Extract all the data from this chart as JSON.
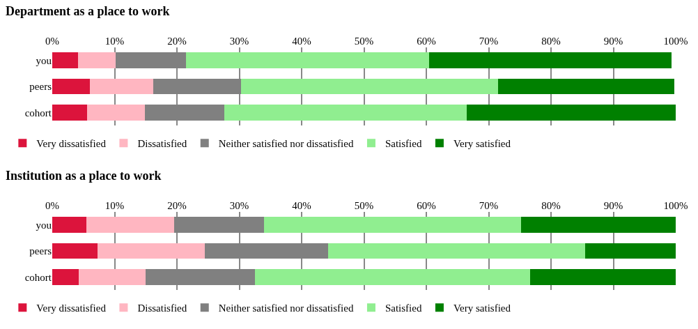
{
  "chart_data": [
    {
      "type": "bar",
      "title": "Department as a place to work",
      "orientation": "horizontal",
      "stacked": true,
      "categories": [
        "you",
        "peers",
        "cohort"
      ],
      "series": [
        {
          "name": "Very dissatisfied",
          "color": "#dc143c",
          "values": [
            4.1,
            6.0,
            5.6
          ]
        },
        {
          "name": "Dissatisfied",
          "color": "#ffb6c1",
          "values": [
            6.1,
            10.2,
            9.3
          ]
        },
        {
          "name": "Neither satisfied nor dissatisfied",
          "color": "#808080",
          "values": [
            11.3,
            14.1,
            12.7
          ]
        },
        {
          "name": "Satisfied",
          "color": "#90ee90",
          "values": [
            39.0,
            41.2,
            38.9
          ]
        },
        {
          "name": "Very satisfied",
          "color": "#008000",
          "values": [
            38.8,
            28.3,
            33.5
          ]
        }
      ],
      "xlim": [
        0,
        100
      ],
      "xticks": [
        {
          "value": 0,
          "label": "0%"
        },
        {
          "value": 10,
          "label": "10%"
        },
        {
          "value": 20,
          "label": "20%"
        },
        {
          "value": 30,
          "label": "30%"
        },
        {
          "value": 40,
          "label": "40%"
        },
        {
          "value": 50,
          "label": "50%"
        },
        {
          "value": 60,
          "label": "60%"
        },
        {
          "value": 70,
          "label": "70%"
        },
        {
          "value": 80,
          "label": "80%"
        },
        {
          "value": 90,
          "label": "90%"
        },
        {
          "value": 100,
          "label": "100%"
        }
      ],
      "grid": "x",
      "legend": "bottom"
    },
    {
      "type": "bar",
      "title": "Institution as a place to work",
      "orientation": "horizontal",
      "stacked": true,
      "categories": [
        "you",
        "peers",
        "cohort"
      ],
      "series": [
        {
          "name": "Very dissatisfied",
          "color": "#dc143c",
          "values": [
            5.5,
            7.3,
            4.3
          ]
        },
        {
          "name": "Dissatisfied",
          "color": "#ffb6c1",
          "values": [
            14.0,
            17.2,
            10.7
          ]
        },
        {
          "name": "Neither satisfied nor dissatisfied",
          "color": "#808080",
          "values": [
            14.5,
            19.7,
            17.5
          ]
        },
        {
          "name": "Satisfied",
          "color": "#90ee90",
          "values": [
            41.2,
            41.3,
            44.1
          ]
        },
        {
          "name": "Very satisfied",
          "color": "#008000",
          "values": [
            24.8,
            14.5,
            23.4
          ]
        }
      ],
      "xlim": [
        0,
        100
      ],
      "xticks": [
        {
          "value": 0,
          "label": "0%"
        },
        {
          "value": 10,
          "label": "10%"
        },
        {
          "value": 20,
          "label": "20%"
        },
        {
          "value": 30,
          "label": "30%"
        },
        {
          "value": 40,
          "label": "40%"
        },
        {
          "value": 50,
          "label": "50%"
        },
        {
          "value": 60,
          "label": "60%"
        },
        {
          "value": 70,
          "label": "70%"
        },
        {
          "value": 80,
          "label": "80%"
        },
        {
          "value": 90,
          "label": "90%"
        },
        {
          "value": 100,
          "label": "100%"
        }
      ],
      "grid": "x",
      "legend": "bottom"
    }
  ]
}
